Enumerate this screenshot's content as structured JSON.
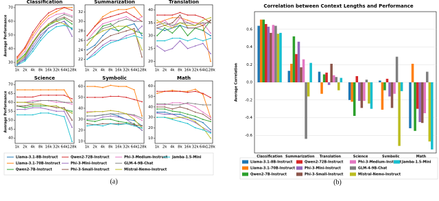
{
  "chart_data": [
    {
      "type": "line-grid",
      "label": "(a)",
      "ylabel": "Average Performance",
      "x": [
        "1k",
        "2k",
        "4k",
        "8k",
        "16k",
        "32k",
        "64k",
        "128k"
      ],
      "series": [
        {
          "name": "Llama-3.1-8B-Instruct",
          "color": "#1f77b4"
        },
        {
          "name": "Llama-3.1-70B-Instruct",
          "color": "#ff7f0e"
        },
        {
          "name": "Qwen2-7B-Instruct",
          "color": "#2ca02c"
        },
        {
          "name": "Qwen2-72B-Instruct",
          "color": "#d62728"
        },
        {
          "name": "Phi-3-Mini-Instruct",
          "color": "#9467bd"
        },
        {
          "name": "Phi-3-Small-Instruct",
          "color": "#8c564b"
        },
        {
          "name": "Phi-3-Medium-Instruct",
          "color": "#e377c2"
        },
        {
          "name": "GLM-4-9B-Chat",
          "color": "#7f7f7f"
        },
        {
          "name": "Mistral-Nemo-Instruct",
          "color": "#bcbd22"
        },
        {
          "name": "Jamba-1.5-Mini",
          "color": "#17becf"
        }
      ],
      "panels": [
        {
          "title": "Classification",
          "ylim": [
            27,
            72
          ],
          "yticks": [
            30,
            40,
            50,
            60,
            70
          ],
          "values": [
            [
              29,
              32,
              40,
              48,
              55,
              58,
              60,
              54
            ],
            [
              33,
              40,
              50,
              58,
              64,
              67,
              70,
              70
            ],
            [
              31,
              36,
              45,
              52,
              57,
              60,
              62,
              58
            ],
            [
              34,
              41,
              52,
              60,
              66,
              69,
              70,
              68
            ],
            [
              28,
              33,
              42,
              50,
              55,
              58,
              60,
              49
            ],
            [
              30,
              35,
              44,
              52,
              58,
              61,
              63,
              60
            ],
            [
              32,
              38,
              48,
              56,
              62,
              65,
              66,
              64
            ],
            [
              29,
              34,
              44,
              52,
              58,
              62,
              65,
              63
            ],
            [
              30,
              35,
              45,
              53,
              58,
              60,
              58,
              55
            ],
            [
              28,
              31,
              38,
              46,
              52,
              56,
              57,
              55
            ]
          ]
        },
        {
          "title": "Summarization",
          "ylim": [
            20.5,
            33.5
          ],
          "yticks": [
            22,
            24,
            26,
            28,
            30,
            32
          ],
          "values": [
            [
              24,
              25,
              27,
              28.5,
              28,
              29,
              29.5,
              27
            ],
            [
              27,
              29,
              31,
              32,
              32.5,
              32.5,
              33,
              31
            ],
            [
              26,
              27,
              29,
              29.5,
              28,
              29,
              28,
              27.5
            ],
            [
              27,
              29,
              30.5,
              31,
              31.5,
              32,
              31,
              30
            ],
            [
              22,
              23.5,
              25,
              26,
              26,
              27,
              27.5,
              29
            ],
            [
              23,
              24.5,
              26,
              27,
              27.5,
              28,
              28.5,
              22.5
            ],
            [
              26,
              28,
              29.5,
              30,
              30.5,
              31,
              30,
              31
            ],
            [
              25,
              27,
              28.5,
              29,
              30,
              30.5,
              30,
              30
            ],
            [
              25,
              27,
              28,
              28.5,
              29,
              29,
              28,
              24
            ],
            [
              22,
              23,
              24.5,
              25.5,
              26,
              26.5,
              27,
              26.5
            ]
          ]
        },
        {
          "title": "Translation",
          "ylim": [
            18,
            42
          ],
          "yticks": [
            20,
            25,
            30,
            35,
            40
          ],
          "values": [
            [
              33,
              32,
              33,
              34,
              33,
              33,
              32,
              30
            ],
            [
              35,
              36,
              37,
              37,
              36,
              35,
              34,
              20
            ],
            [
              30,
              33,
              31,
              34,
              30,
              33,
              32,
              36
            ],
            [
              38,
              38,
              38,
              39,
              38,
              38,
              37,
              35
            ],
            [
              26,
              24,
              25,
              28,
              25,
              26,
              27,
              23
            ],
            [
              33,
              34,
              35,
              38,
              33,
              33,
              34,
              36
            ],
            [
              34,
              36,
              33,
              37,
              35,
              35,
              35,
              31
            ],
            [
              34,
              35,
              34,
              35,
              35,
              34,
              35,
              35
            ],
            [
              36,
              34,
              33,
              35,
              34,
              34,
              36,
              37
            ],
            [
              28,
              28,
              29,
              29,
              28,
              29,
              28,
              29
            ]
          ]
        },
        {
          "title": "Science",
          "ylim": [
            37,
            72
          ],
          "yticks": [
            40,
            45,
            50,
            55,
            60,
            65,
            70
          ],
          "values": [
            [
              58,
              58,
              59,
              59,
              58,
              58,
              56,
              54
            ],
            [
              67,
              67,
              67,
              67,
              67,
              67,
              67,
              60
            ],
            [
              58,
              57,
              58,
              58,
              58,
              58,
              56,
              55
            ],
            [
              63,
              63,
              63,
              64,
              64,
              64,
              64,
              62
            ],
            [
              56,
              56,
              57,
              57,
              56,
              55,
              55,
              46
            ],
            [
              58,
              58,
              59,
              59,
              58,
              57,
              57,
              50
            ],
            [
              60,
              60,
              61,
              61,
              61,
              60,
              60,
              59
            ],
            [
              60,
              60,
              60,
              61,
              61,
              61,
              60,
              60
            ],
            [
              60,
              60,
              59,
              59,
              58,
              58,
              56,
              54
            ],
            [
              53,
              53,
              53,
              54,
              54,
              53,
              52,
              38
            ]
          ]
        },
        {
          "title": "Symbolic",
          "ylim": [
            8,
            65
          ],
          "yticks": [
            10,
            20,
            30,
            40,
            50,
            60
          ],
          "values": [
            [
              33,
              33,
              34,
              35,
              33,
              30,
              29,
              24
            ],
            [
              60,
              60,
              59,
              61,
              60,
              60,
              57,
              33
            ],
            [
              29,
              28,
              30,
              30,
              28,
              27,
              26,
              20
            ],
            [
              50,
              50,
              50,
              51,
              51,
              50,
              48,
              46
            ],
            [
              30,
              30,
              32,
              33,
              32,
              30,
              25,
              20
            ],
            [
              26,
              25,
              26,
              26,
              26,
              26,
              25,
              24
            ],
            [
              37,
              37,
              37,
              38,
              37,
              35,
              33,
              29
            ],
            [
              33,
              33,
              34,
              35,
              35,
              35,
              34,
              31
            ],
            [
              36,
              37,
              37,
              38,
              37,
              35,
              30,
              22
            ],
            [
              24,
              25,
              24,
              26,
              25,
              26,
              24,
              22
            ]
          ]
        },
        {
          "title": "Math",
          "ylim": [
            5,
            65
          ],
          "yticks": [
            10,
            20,
            30,
            40,
            50,
            60
          ],
          "values": [
            [
              35,
              35,
              33,
              33,
              30,
              28,
              25,
              18
            ],
            [
              53,
              55,
              56,
              55,
              55,
              57,
              52,
              30
            ],
            [
              38,
              38,
              36,
              35,
              33,
              31,
              28,
              26
            ],
            [
              55,
              55,
              55,
              55,
              54,
              55,
              53,
              49
            ],
            [
              34,
              33,
              33,
              30,
              28,
              25,
              20,
              16
            ],
            [
              40,
              40,
              38,
              40,
              38,
              35,
              33,
              28
            ],
            [
              42,
              42,
              44,
              44,
              43,
              40,
              35,
              30
            ],
            [
              43,
              43,
              42,
              42,
              44,
              43,
              42,
              42
            ],
            [
              30,
              30,
              29,
              30,
              30,
              26,
              20,
              10
            ],
            [
              30,
              30,
              28,
              26,
              24,
              20,
              18,
              15
            ]
          ]
        }
      ]
    },
    {
      "type": "bar",
      "label": "(b)",
      "title": "Correlation between Context Lengths and Performance",
      "ylabel": "Average Correlation",
      "categories": [
        "Classification",
        "Summarization",
        "Translation",
        "Science",
        "Symbolic",
        "Math"
      ],
      "ylim": [
        -0.8,
        0.8
      ],
      "yticks": [
        -0.6,
        -0.4,
        -0.2,
        {
          "value": 0,
          "label": "0.0"
        },
        0.2,
        0.4,
        0.6
      ],
      "series": [
        {
          "name": "Llama-3.1-8B-Instruct",
          "color": "#1f77b4",
          "values": [
            0.64,
            0.13,
            0.12,
            -0.2,
            0.02,
            -0.52
          ]
        },
        {
          "name": "Llama-3.1-70B-Instruct",
          "color": "#ff7f0e",
          "values": [
            0.71,
            0.21,
            -0.13,
            -0.22,
            -0.31,
            0.21
          ]
        },
        {
          "name": "Qwen2-7B-Instruct",
          "color": "#2ca02c",
          "values": [
            0.71,
            0.52,
            0.09,
            -0.38,
            -0.09,
            -0.55
          ]
        },
        {
          "name": "Qwen2-72B-Instruct",
          "color": "#d62728",
          "values": [
            0.66,
            0.32,
            0.11,
            0.07,
            0.04,
            -0.3
          ]
        },
        {
          "name": "Phi-3-Mini-Instruct",
          "color": "#9467bd",
          "values": [
            0.63,
            0.46,
            -0.03,
            -0.21,
            -0.16,
            -0.45
          ]
        },
        {
          "name": "Phi-3-Small-Instruct",
          "color": "#8c564b",
          "values": [
            0.56,
            0.17,
            0.21,
            -0.29,
            -0.29,
            -0.46
          ]
        },
        {
          "name": "Phi-3-Medium-Instruct",
          "color": "#e377c2",
          "values": [
            0.65,
            0.26,
            0.08,
            -0.21,
            -0.13,
            -0.35
          ]
        },
        {
          "name": "GLM-4-9B-Chat",
          "color": "#7f7f7f",
          "values": [
            0.64,
            -0.64,
            0.06,
            0.03,
            0.29,
            0.12
          ]
        },
        {
          "name": "Mistral-Nemo-Instruct",
          "color": "#bcbd22",
          "values": [
            0.55,
            -0.16,
            -0.09,
            -0.24,
            -0.72,
            -0.67
          ]
        },
        {
          "name": "Jamba-1.5-Mini",
          "color": "#17becf",
          "values": [
            0.56,
            0.22,
            0.05,
            -0.3,
            -0.1,
            -0.76
          ]
        }
      ]
    }
  ]
}
